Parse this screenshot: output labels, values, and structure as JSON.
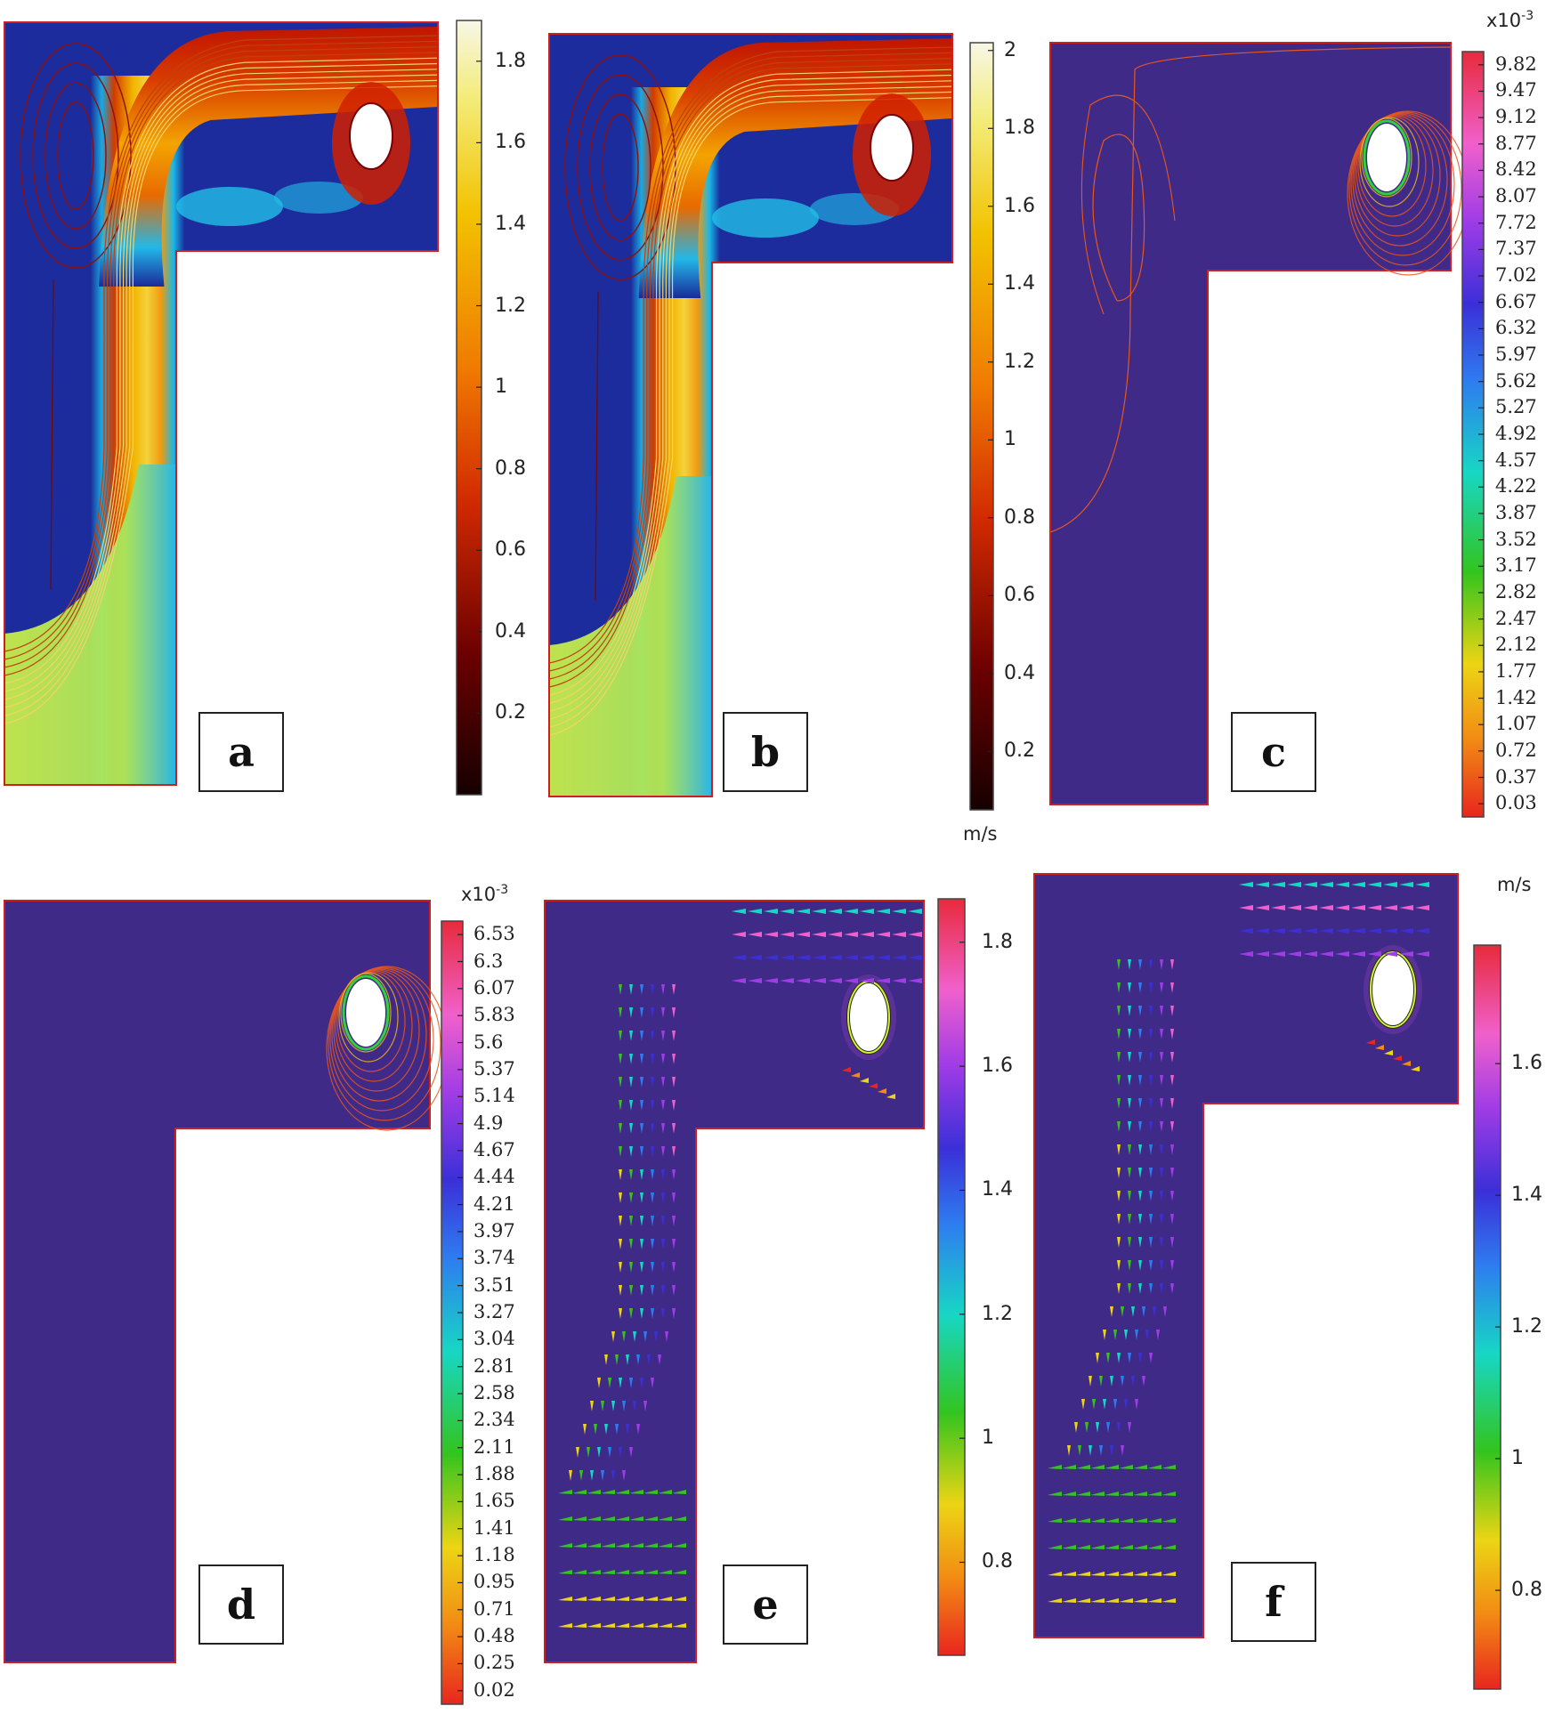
{
  "panels": [
    {
      "label": "a"
    },
    {
      "label": "b"
    },
    {
      "label": "c"
    },
    {
      "label": "d"
    },
    {
      "label": "e"
    },
    {
      "label": "f"
    }
  ],
  "colorbars": [
    {
      "panel": "a",
      "colormap": "heat",
      "ticks": [
        "1.8",
        "1.6",
        "1.4",
        "1.2",
        "1",
        "0.8",
        "0.6",
        "0.4",
        "0.2"
      ],
      "tick_values": [
        1.8,
        1.6,
        1.4,
        1.2,
        1,
        0.8,
        0.6,
        0.4,
        0.2
      ],
      "range": [
        0,
        1.9
      ],
      "unit": "",
      "multiplier": ""
    },
    {
      "panel": "b",
      "colormap": "heat",
      "ticks": [
        "2",
        "1.8",
        "1.6",
        "1.4",
        "1.2",
        "1",
        "0.8",
        "0.6",
        "0.4",
        "0.2"
      ],
      "tick_values": [
        2,
        1.8,
        1.6,
        1.4,
        1.2,
        1,
        0.8,
        0.6,
        0.4,
        0.2
      ],
      "range": [
        0.05,
        2.02
      ],
      "unit": "m/s",
      "multiplier": ""
    },
    {
      "panel": "c",
      "colormap": "rainbow",
      "ticks": [
        "9.82",
        "9.47",
        "9.12",
        "8.77",
        "8.42",
        "8.07",
        "7.72",
        "7.37",
        "7.02",
        "6.67",
        "6.32",
        "5.97",
        "5.62",
        "5.27",
        "4.92",
        "4.57",
        "4.22",
        "3.87",
        "3.52",
        "3.17",
        "2.82",
        "2.47",
        "2.12",
        "1.77",
        "1.42",
        "1.07",
        "0.72",
        "0.37",
        "0.03"
      ],
      "unit": "",
      "multiplier": "x10-3"
    },
    {
      "panel": "d",
      "colormap": "rainbow",
      "ticks": [
        "6.53",
        "6.3",
        "6.07",
        "5.83",
        "5.6",
        "5.37",
        "5.14",
        "4.9",
        "4.67",
        "4.44",
        "4.21",
        "3.97",
        "3.74",
        "3.51",
        "3.27",
        "3.04",
        "2.81",
        "2.58",
        "2.34",
        "2.11",
        "1.88",
        "1.65",
        "1.41",
        "1.18",
        "0.95",
        "0.71",
        "0.48",
        "0.25",
        "0.02"
      ],
      "unit": "",
      "multiplier": "x10-3"
    },
    {
      "panel": "e",
      "colormap": "rainbow",
      "ticks": [
        "1.8",
        "1.6",
        "1.4",
        "1.2",
        "1",
        "0.8"
      ],
      "tick_values": [
        1.8,
        1.6,
        1.4,
        1.2,
        1,
        0.8
      ],
      "range": [
        0.65,
        1.87
      ],
      "unit": "",
      "multiplier": ""
    },
    {
      "panel": "f",
      "colormap": "rainbow",
      "ticks": [
        "1.6",
        "1.4",
        "1.2",
        "1",
        "0.8"
      ],
      "tick_values": [
        1.6,
        1.4,
        1.2,
        1,
        0.8
      ],
      "range": [
        0.65,
        1.78
      ],
      "unit": "m/s",
      "multiplier": ""
    }
  ],
  "colors": {
    "domain": "#3f2a88",
    "border": "#cc1f1f",
    "jet_core": "#ffd84a",
    "background": "#ffffff"
  }
}
